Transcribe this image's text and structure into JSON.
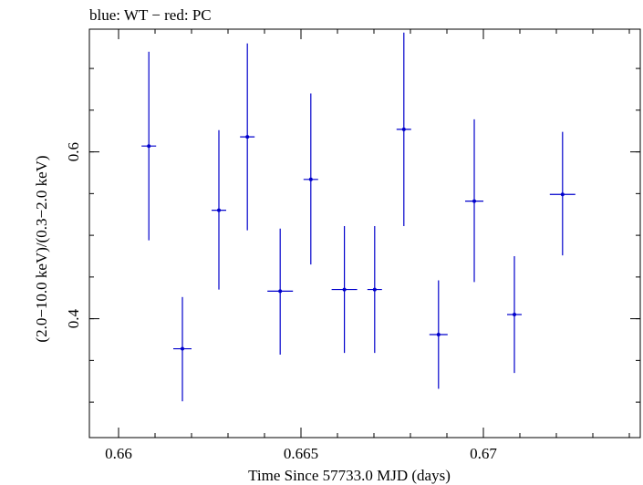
{
  "chart_data": {
    "type": "scatter",
    "title": "blue: WT − red: PC",
    "xlabel": "Time Since 57733.0 MJD (days)",
    "ylabel": "(2.0−10.0 keV)/(0.3−2.0 keV)",
    "xlim": [
      0.6592,
      0.6743
    ],
    "ylim": [
      0.2575,
      0.7471
    ],
    "x_ticks": [
      {
        "value": 0.66,
        "label": "0.66"
      },
      {
        "value": 0.665,
        "label": "0.665"
      },
      {
        "value": 0.67,
        "label": "0.67"
      }
    ],
    "y_ticks": [
      {
        "value": 0.4,
        "label": "0.4"
      },
      {
        "value": 0.6,
        "label": "0.6"
      }
    ],
    "grid": false,
    "series": [
      {
        "color": "#0000cc",
        "points": [
          {
            "x": 0.66083,
            "y": 0.607,
            "xerr": 0.0002,
            "ylo": 0.494,
            "yhi": 0.72
          },
          {
            "x": 0.66175,
            "y": 0.364,
            "xerr": 0.00025,
            "ylo": 0.301,
            "yhi": 0.426
          },
          {
            "x": 0.66275,
            "y": 0.53,
            "xerr": 0.0002,
            "ylo": 0.435,
            "yhi": 0.626
          },
          {
            "x": 0.66353,
            "y": 0.618,
            "xerr": 0.0002,
            "ylo": 0.506,
            "yhi": 0.73
          },
          {
            "x": 0.66443,
            "y": 0.433,
            "xerr": 0.00035,
            "ylo": 0.357,
            "yhi": 0.508
          },
          {
            "x": 0.66527,
            "y": 0.567,
            "xerr": 0.0002,
            "ylo": 0.465,
            "yhi": 0.67
          },
          {
            "x": 0.66619,
            "y": 0.435,
            "xerr": 0.00035,
            "ylo": 0.359,
            "yhi": 0.511
          },
          {
            "x": 0.66702,
            "y": 0.435,
            "xerr": 0.0002,
            "ylo": 0.359,
            "yhi": 0.511
          },
          {
            "x": 0.66782,
            "y": 0.627,
            "xerr": 0.0002,
            "ylo": 0.511,
            "yhi": 0.743
          },
          {
            "x": 0.66877,
            "y": 0.381,
            "xerr": 0.00025,
            "ylo": 0.316,
            "yhi": 0.446
          },
          {
            "x": 0.66975,
            "y": 0.541,
            "xerr": 0.00025,
            "ylo": 0.444,
            "yhi": 0.639
          },
          {
            "x": 0.67085,
            "y": 0.405,
            "xerr": 0.0002,
            "ylo": 0.335,
            "yhi": 0.475
          },
          {
            "x": 0.67217,
            "y": 0.549,
            "xerr": 0.00035,
            "ylo": 0.476,
            "yhi": 0.624
          }
        ]
      }
    ]
  }
}
